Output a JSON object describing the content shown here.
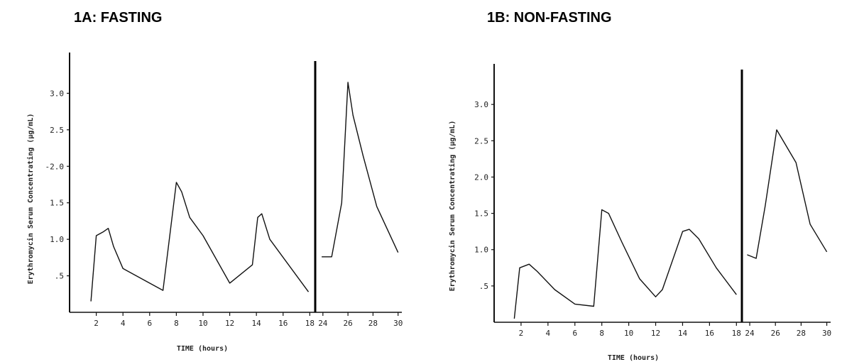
{
  "panels": {
    "a": {
      "title": "1A: FASTING"
    },
    "b": {
      "title": "1B: NON-FASTING"
    }
  },
  "chart_data": [
    {
      "type": "line",
      "title": "1A: FASTING",
      "xlabel": "TIME (hours)",
      "ylabel": "Erythromycin Serum Concentrating (µg/mL)",
      "ylim": [
        0,
        3.5
      ],
      "yticks": [
        0.5,
        1.0,
        1.5,
        2.0,
        2.5,
        3.0
      ],
      "ytick_labels": [
        ".5",
        "1.0",
        "1.5",
        "-2.0",
        "2.5",
        "3.0"
      ],
      "segments": [
        {
          "xlim": [
            0,
            18.3
          ],
          "xticks": [
            2,
            4,
            6,
            8,
            10,
            12,
            14,
            16,
            18
          ],
          "x": [
            1.6,
            2.0,
            2.5,
            2.9,
            3.3,
            4.0,
            6.0,
            7.0,
            8.0,
            8.4,
            9.0,
            10.0,
            12.0,
            13.7,
            14.1,
            14.4,
            15.0,
            17.9
          ],
          "y": [
            0.15,
            1.05,
            1.1,
            1.15,
            0.9,
            0.6,
            0.4,
            0.3,
            1.78,
            1.65,
            1.3,
            1.05,
            0.4,
            0.65,
            1.3,
            1.35,
            1.0,
            0.28
          ]
        },
        {
          "xlim": [
            23.5,
            30.3
          ],
          "xticks": [
            24,
            26,
            28,
            30
          ],
          "x": [
            23.9,
            24.7,
            25.5,
            26.0,
            26.4,
            27.2,
            28.3,
            30.0
          ],
          "y": [
            0.76,
            0.76,
            1.5,
            3.15,
            2.7,
            2.15,
            1.45,
            0.82
          ]
        }
      ]
    },
    {
      "type": "line",
      "title": "1B: NON-FASTING",
      "xlabel": "TIME (hours)",
      "ylabel": "Erythromycin Serum Concentrating (µg/mL)",
      "ylim": [
        0,
        3.5
      ],
      "yticks": [
        0.5,
        1.0,
        1.5,
        2.0,
        2.5,
        3.0
      ],
      "ytick_labels": [
        ".5",
        "1.0",
        "1.5",
        "2.0",
        "2.5",
        "3.0"
      ],
      "segments": [
        {
          "xlim": [
            0,
            18.3
          ],
          "xticks": [
            2,
            4,
            6,
            8,
            10,
            12,
            14,
            16,
            18
          ],
          "x": [
            1.5,
            1.9,
            2.6,
            3.2,
            4.5,
            6.0,
            7.4,
            8.0,
            8.5,
            9.5,
            10.8,
            12.0,
            12.5,
            14.0,
            14.5,
            15.2,
            16.5,
            18.0
          ],
          "y": [
            0.05,
            0.75,
            0.8,
            0.7,
            0.45,
            0.25,
            0.22,
            1.55,
            1.5,
            1.1,
            0.6,
            0.35,
            0.45,
            1.25,
            1.28,
            1.15,
            0.75,
            0.38
          ]
        },
        {
          "xlim": [
            23.5,
            30.3
          ],
          "xticks": [
            24,
            26,
            28,
            30
          ],
          "x": [
            23.8,
            24.5,
            25.2,
            26.1,
            27.6,
            28.7,
            30.0
          ],
          "y": [
            0.93,
            0.88,
            1.6,
            2.65,
            2.2,
            1.35,
            0.97
          ]
        }
      ]
    }
  ]
}
